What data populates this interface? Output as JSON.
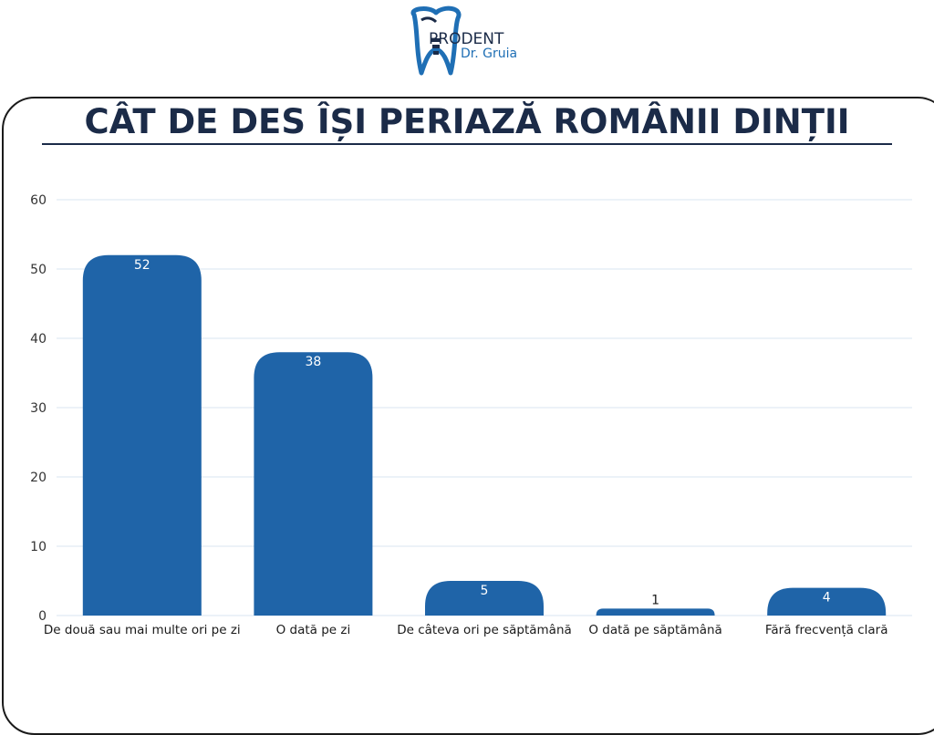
{
  "brand": {
    "name": "PRODENT",
    "subtitle": "Dr. Gruia"
  },
  "colors": {
    "bar": "#1f64a8",
    "title": "#1b2b48",
    "grid": "#d9e6f0",
    "logo_blue": "#1f6fb5",
    "logo_dark": "#1b2b48"
  },
  "chart_data": {
    "type": "bar",
    "title": "CÂT DE DES ÎȘI PERIAZĂ ROMÂNII DINȚII",
    "xlabel": "",
    "ylabel": "",
    "categories": [
      "De două sau mai multe ori pe zi",
      "O dată pe zi",
      "De câteva ori pe săptămână",
      "O dată pe săptămână",
      "Fără frecvență clară"
    ],
    "values": [
      52,
      38,
      5,
      1,
      4
    ],
    "data_labels": [
      "52",
      "38",
      "5",
      "1",
      "4"
    ],
    "ylim": [
      0,
      60
    ],
    "yticks": [
      0,
      10,
      20,
      30,
      40,
      50,
      60
    ],
    "grid": true,
    "legend": "none"
  }
}
